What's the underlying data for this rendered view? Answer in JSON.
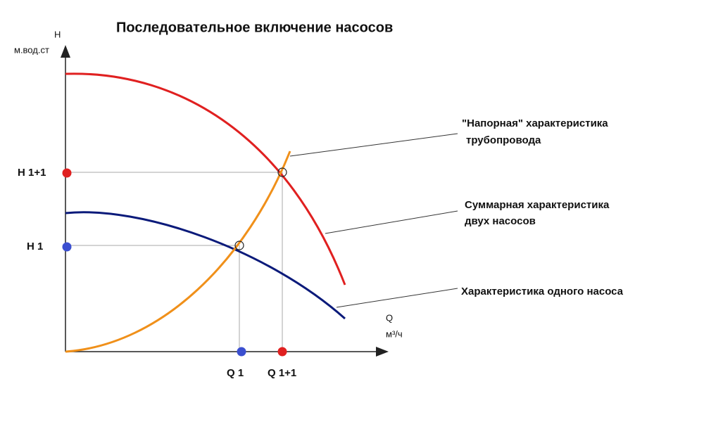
{
  "title": "Последовательное включение насосов",
  "axes": {
    "y_label": "H",
    "y_unit": "м.вод.ст",
    "x_label": "Q",
    "x_unit": "м³/ч"
  },
  "points": {
    "h_double": "H 1+1",
    "h_single": "H 1",
    "q_single": "Q 1",
    "q_double": "Q 1+1"
  },
  "annotations": {
    "pipeline": [
      "\"Напорная\" характеристика",
      "трубопровода"
    ],
    "sum": [
      "Суммарная характеристика",
      "двух насосов"
    ],
    "single": [
      "Характеристика одного насоса"
    ]
  }
}
